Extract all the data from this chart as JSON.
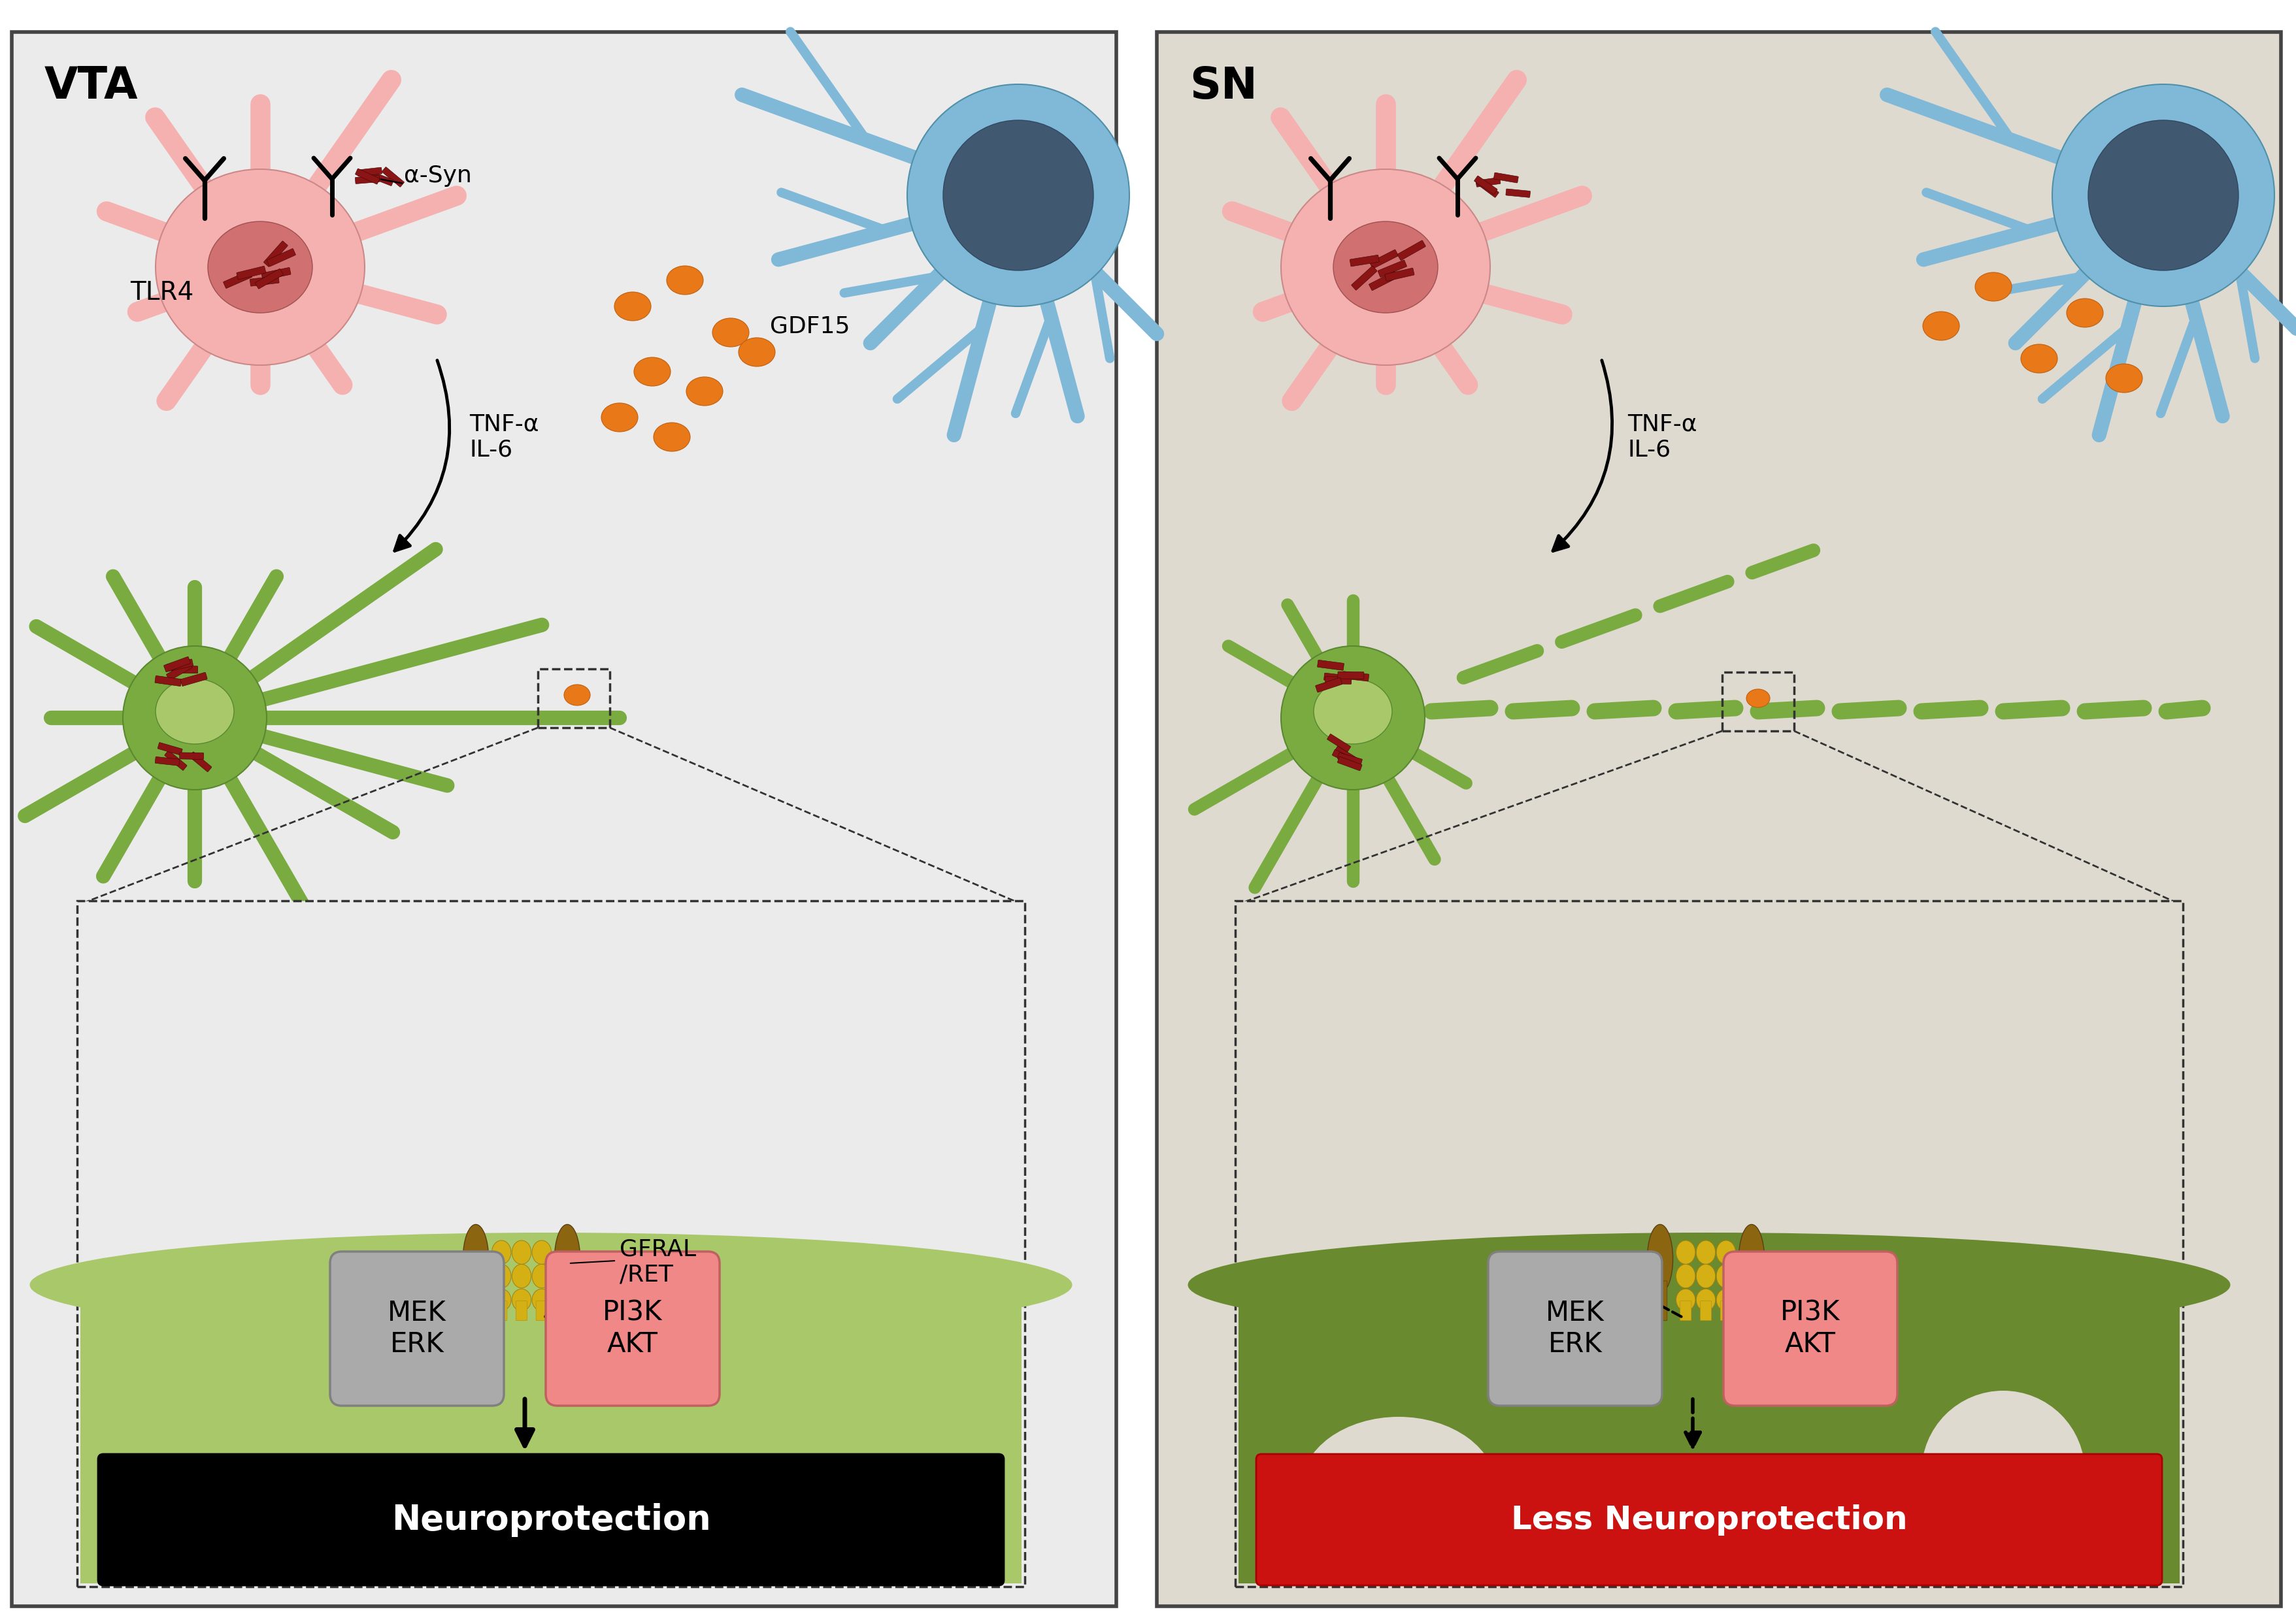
{
  "left_panel": {
    "title": "VTA",
    "bg_color": "#ebebeb",
    "outcome_text": "Neuroprotection",
    "outcome_bg": "#000000",
    "outcome_text_color": "#ffffff",
    "gdf15_label": "GDF15"
  },
  "right_panel": {
    "title": "SN",
    "bg_color": "#dedad0",
    "outcome_text": "Less Neuroprotection",
    "outcome_bg": "#cc1111",
    "outcome_text_color": "#ffffff"
  },
  "colors": {
    "pink_neuron": "#f5b0b0",
    "pink_nucleus": "#d07070",
    "green_astrocyte": "#7aab40",
    "green_light": "#a8c86a",
    "green_dark": "#5a8830",
    "blue_neuron": "#80b8d8",
    "blue_nucleus": "#405870",
    "red_aggregates": "#8b1515",
    "orange_dots": "#e87818",
    "gfral_brown": "#8b6510",
    "gfral_yellow": "#d4b015",
    "mek_erk_bg": "#aaaaaa",
    "pi3k_akt_bg": "#f08888",
    "inset_bg_left": "#f8f8f8",
    "inset_surface_left": "#a8c86a",
    "inset_bg_right": "#dedad0",
    "inset_surface_right": "#6a8a30"
  },
  "labels": {
    "tlr4": "TLR4",
    "alpha_syn": "α-Syn",
    "tnf_il6": "TNF-α\nIL-6",
    "gdf15": "GDF15",
    "gfral_ret": "GFRAL\n/RET",
    "mek_erk": "MEK\nERK",
    "pi3k_akt": "PI3K\nAKT"
  }
}
